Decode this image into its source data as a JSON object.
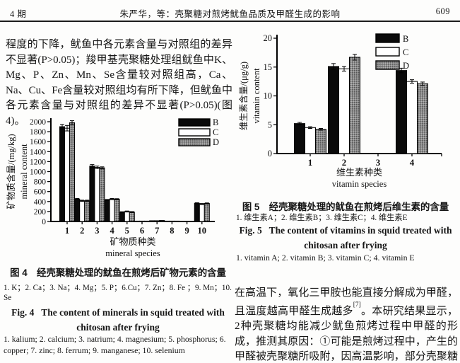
{
  "header": {
    "issue": "4 期",
    "running_title": "朱严华，等：壳聚糖对煎烤鱿鱼品质及甲醛生成的影响",
    "page_number": "609"
  },
  "left_column": {
    "paragraph": "程度的下降，鱿鱼中各元素含量与对照组的差异不显著(P>0.05)；羧甲基壳聚糖处理组鱿鱼中K、Mg、P、Zn、Mn、Se含量较对照组高，Ca、Na、Cu、Fe含量较对照组均有所下降，但鱿鱼中各元素含量与对照组的差异不显著(P>0.05)(图4)。",
    "fig4": {
      "caption_zh": "图 4　经壳聚糖处理的鱿鱼在煎烤后矿物元素的含量",
      "items_zh": "1. K；2. Ca；3. Na；4. Mg；5. P；6.Cu；7. Zn；8. Fe ；9. Mn；10. Se",
      "caption_en_line1": "Fig. 4   The content of minerals in squid treated with",
      "caption_en_line2": "chitosan after frying",
      "items_en": "1. kalium; 2. calcium; 3. natrium; 4. magnesium; 5. phosphorus; 6. copper; 7. zinc; 8. ferrum; 9. manganese; 10. selenium"
    }
  },
  "right_column": {
    "fig5": {
      "caption_zh": "图 5　经壳聚糖处理的鱿鱼在煎烤后维生素的含量",
      "items_zh": "1. 维生素A；2. 维生素B；3. 维生素C；4. 维生素E",
      "caption_en_line1": "Fig. 5   The content of vitamins in squid treated with",
      "caption_en_line2": "chitosan after frying",
      "items_en": "1. vitamin A; 2. vitamin B; 3. vitamin C; 4. vitamin E"
    },
    "paragraph_pre": "在高温下，氧化三甲胺也能直接分解成为甲醛，且温度越高甲醛生成越多",
    "paragraph_ref": "[7]",
    "paragraph_post": "。本研究结果显示，2种壳聚糖均能减少鱿鱼煎烤过程中甲醛的形成，推测其原因：①可能是煎烤过程中，产生的甲醛被壳聚糖所吸附，因高温影响，部分壳聚糖从鱿鱼表面脱落，随壳聚糖流失，导致"
  },
  "chart_data": [
    {
      "id": "fig4",
      "type": "bar",
      "categories": [
        "1",
        "2",
        "3",
        "4",
        "5",
        "6",
        "7",
        "8",
        "9",
        "10"
      ],
      "series": [
        {
          "name": "B",
          "fill": "black",
          "values": [
            1900,
            450,
            1110,
            430,
            185,
            8,
            15,
            8,
            5,
            365
          ],
          "errors": [
            45,
            12,
            30,
            12,
            10,
            0,
            0,
            0,
            0,
            10
          ]
        },
        {
          "name": "C",
          "fill": "white",
          "values": [
            1870,
            415,
            1085,
            450,
            200,
            8,
            15,
            8,
            5,
            350
          ],
          "errors": [
            55,
            12,
            25,
            12,
            10,
            0,
            0,
            0,
            0,
            10
          ]
        },
        {
          "name": "D",
          "fill": "speckle",
          "values": [
            1980,
            415,
            1075,
            445,
            188,
            8,
            20,
            8,
            5,
            362
          ],
          "errors": [
            40,
            12,
            20,
            12,
            10,
            0,
            0,
            0,
            0,
            10
          ]
        }
      ],
      "ylabel_zh": "矿物质含量/(mg/kg)",
      "ylabel_en": "mineral content",
      "xlabel_zh": "矿物质种类",
      "xlabel_en": "mineral species",
      "ylim": [
        0,
        2000
      ],
      "ytick_step": 200,
      "legend": [
        "B",
        "C",
        "D"
      ],
      "legend_position": "top-right",
      "grid": false
    },
    {
      "id": "fig5",
      "type": "bar",
      "categories": [
        "1",
        "2",
        "3",
        "4"
      ],
      "series": [
        {
          "name": "B",
          "fill": "black",
          "values": [
            5.2,
            15.1,
            0,
            14.4
          ],
          "errors": [
            0.2,
            0.5,
            0,
            0.4
          ]
        },
        {
          "name": "C",
          "fill": "white",
          "values": [
            4.5,
            14.7,
            0,
            12.5
          ],
          "errors": [
            0.15,
            0.4,
            0,
            0.3
          ]
        },
        {
          "name": "D",
          "fill": "speckle",
          "values": [
            4.2,
            16.7,
            0,
            12.1
          ],
          "errors": [
            0.15,
            0.5,
            0,
            0.3
          ]
        }
      ],
      "ylabel_zh": "维生素含量/(μg/g)",
      "ylabel_en": "vitamin content",
      "xlabel_zh": "维生素种类",
      "xlabel_en": "vitamin species",
      "ylim": [
        0,
        20
      ],
      "ytick_step": 5,
      "legend": [
        "B",
        "C",
        "D"
      ],
      "legend_position": "top-right",
      "grid": false
    }
  ]
}
